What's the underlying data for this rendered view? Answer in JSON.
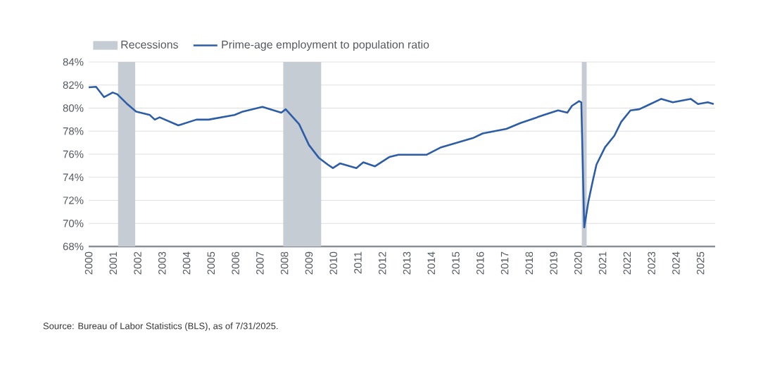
{
  "chart_data": {
    "type": "line",
    "x": [
      2000,
      2000.3,
      2000.63,
      2000.98,
      2001.17,
      2001.55,
      2001.94,
      2002.5,
      2002.7,
      2002.9,
      2003.66,
      2004.4,
      2004.9,
      2005.96,
      2006.3,
      2007.1,
      2007.87,
      2008.05,
      2008.6,
      2009.0,
      2009.4,
      2009.77,
      2009.98,
      2010.27,
      2010.94,
      2011.22,
      2011.7,
      2012.28,
      2012.66,
      2013.8,
      2014.4,
      2015.7,
      2016.1,
      2017.07,
      2017.64,
      2018.6,
      2019.18,
      2019.56,
      2019.75,
      2020.04,
      2020.13,
      2020.25,
      2020.42,
      2020.6,
      2020.75,
      2021.1,
      2021.48,
      2021.76,
      2022.14,
      2022.5,
      2022.8,
      2023.4,
      2023.87,
      2024.6,
      2024.9,
      2025.3,
      2025.54
    ],
    "series": [
      {
        "name": "Prime-age employment to population ratio",
        "color": "#2d5da6",
        "values": [
          81.8,
          81.85,
          80.95,
          81.35,
          81.2,
          80.4,
          79.7,
          79.4,
          79.0,
          79.2,
          78.5,
          79.0,
          79.0,
          79.4,
          79.7,
          80.1,
          79.6,
          79.9,
          78.6,
          76.8,
          75.7,
          75.1,
          74.8,
          75.2,
          74.8,
          75.3,
          74.95,
          75.75,
          75.95,
          75.95,
          76.6,
          77.4,
          77.8,
          78.2,
          78.7,
          79.4,
          79.8,
          79.6,
          80.2,
          80.6,
          80.5,
          69.65,
          71.9,
          73.7,
          75.1,
          76.6,
          77.6,
          78.8,
          79.8,
          79.9,
          80.2,
          80.8,
          80.5,
          80.8,
          80.35,
          80.5,
          80.35
        ]
      }
    ],
    "bands": [
      {
        "axis": "x",
        "from": 2001.2,
        "to": 2001.9,
        "label": "Recessions",
        "color": "#c5ccd4"
      },
      {
        "axis": "x",
        "from": 2007.95,
        "to": 2009.5,
        "color": "#c5ccd4"
      },
      {
        "axis": "x",
        "from": 2020.15,
        "to": 2020.35,
        "color": "#c5ccd4"
      }
    ],
    "xlim": [
      2000,
      2025.6
    ],
    "xticks": [
      2000,
      2001,
      2002,
      2003,
      2004,
      2005,
      2006,
      2007,
      2008,
      2009,
      2010,
      2011,
      2012,
      2013,
      2014,
      2015,
      2016,
      2017,
      2018,
      2019,
      2020,
      2021,
      2022,
      2023,
      2024,
      2025
    ],
    "ylim": [
      68,
      84
    ],
    "yticks": [
      {
        "value": 68,
        "label": "68%"
      },
      {
        "value": 70,
        "label": "70%"
      },
      {
        "value": 72,
        "label": "72%"
      },
      {
        "value": 74,
        "label": "74%"
      },
      {
        "value": 76,
        "label": "76%"
      },
      {
        "value": 78,
        "label": "78%"
      },
      {
        "value": 80,
        "label": "80%"
      },
      {
        "value": 82,
        "label": "82%"
      },
      {
        "value": 84,
        "label": "84%"
      }
    ],
    "grid": "y",
    "legend": "top left",
    "annotations": [
      "Source: Bureau of Labor Statistics (BLS), as of 7/31/2025."
    ]
  }
}
